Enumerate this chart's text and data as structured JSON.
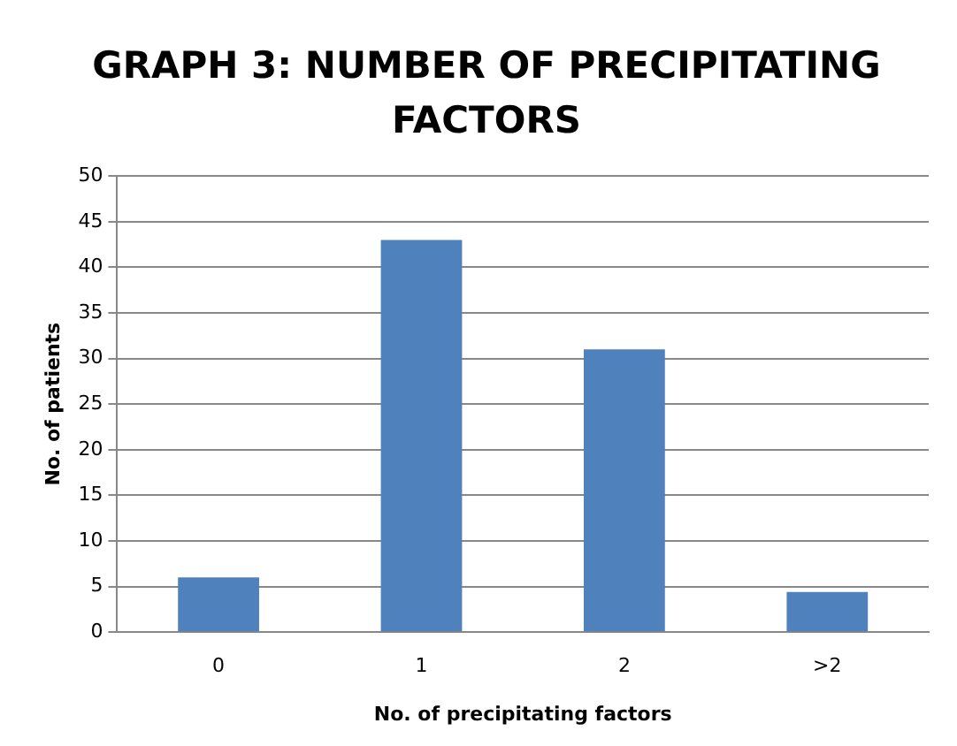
{
  "chart_data": {
    "type": "bar",
    "title": "GRAPH 3: NUMBER OF PRECIPITATING FACTORS",
    "xlabel": "No. of precipitating factors",
    "ylabel": "No. of patients",
    "categories": [
      "0",
      "1",
      "2",
      ">2"
    ],
    "values": [
      6,
      43,
      31,
      4.4
    ],
    "color": "#4f81bd",
    "ylim": [
      0,
      50
    ],
    "yticks": [
      0,
      5,
      10,
      15,
      20,
      25,
      30,
      35,
      40,
      45,
      50
    ],
    "grid": "y",
    "legend": false
  }
}
